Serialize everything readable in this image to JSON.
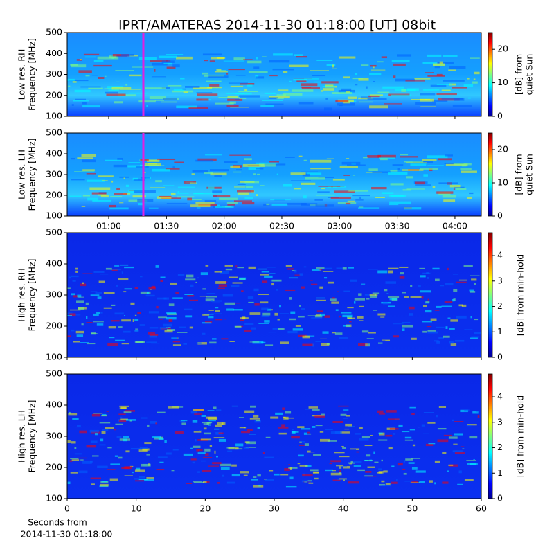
{
  "chart_data": [
    {
      "type": "spectrogram",
      "title": "IPRT/AMATERAS 2014-11-30 01:18:00 [UT]   08bit",
      "ylabel": [
        "Low res. RH",
        "Frequency [MHz]"
      ],
      "ylim": [
        100,
        500
      ],
      "yticks": [
        100,
        200,
        300,
        400,
        500
      ],
      "xlim": [
        38.4,
        253.7
      ],
      "xticks": [
        60,
        90,
        120,
        150,
        180,
        210,
        240
      ],
      "xtick_labels": false,
      "marker_x": 78,
      "marker_color": "#e020e0",
      "clim": [
        0,
        25
      ],
      "cticks": [
        0,
        10,
        20
      ],
      "clabel": [
        "[dB] from",
        "quiet Sun"
      ]
    },
    {
      "type": "spectrogram",
      "ylabel": [
        "Low res. LH",
        "Frequency [MHz]"
      ],
      "ylim": [
        100,
        500
      ],
      "yticks": [
        100,
        200,
        300,
        400,
        500
      ],
      "xlim": [
        38.4,
        253.7
      ],
      "xticks": [
        {
          "value": 60,
          "label": "01:00"
        },
        {
          "value": 90,
          "label": "01:30"
        },
        {
          "value": 120,
          "label": "02:00"
        },
        {
          "value": 150,
          "label": "02:30"
        },
        {
          "value": 180,
          "label": "03:00"
        },
        {
          "value": 210,
          "label": "03:30"
        },
        {
          "value": 240,
          "label": "04:00"
        }
      ],
      "xtick_labels": true,
      "marker_x": 78,
      "marker_color": "#e020e0",
      "clim": [
        0,
        25
      ],
      "cticks": [
        0,
        10,
        20
      ],
      "clabel": [
        "[dB] from",
        "quiet Sun"
      ]
    },
    {
      "type": "spectrogram",
      "ylabel": [
        "High res. RH",
        "Frequency [MHz]"
      ],
      "ylim": [
        100,
        500
      ],
      "yticks": [
        100,
        200,
        300,
        400,
        500
      ],
      "xlim": [
        0,
        60
      ],
      "xticks": [
        0,
        10,
        20,
        30,
        40,
        50,
        60
      ],
      "xtick_labels": false,
      "clim": [
        0,
        4.9
      ],
      "cticks": [
        0,
        1,
        2,
        3,
        4
      ],
      "clabel": [
        "[dB] from min-hold"
      ]
    },
    {
      "type": "spectrogram",
      "ylabel": [
        "High res. LH",
        "Frequency [MHz]"
      ],
      "ylim": [
        100,
        500
      ],
      "yticks": [
        100,
        200,
        300,
        400,
        500
      ],
      "xlim": [
        0,
        60
      ],
      "xticks": [
        0,
        10,
        20,
        30,
        40,
        50,
        60
      ],
      "xtick_labels": true,
      "xlabel": [
        "Seconds from",
        "2014-11-30 01:18:00"
      ],
      "clim": [
        0,
        4.9
      ],
      "cticks": [
        0,
        1,
        2,
        3,
        4
      ],
      "clabel": [
        "[dB] from min-hold"
      ]
    }
  ]
}
